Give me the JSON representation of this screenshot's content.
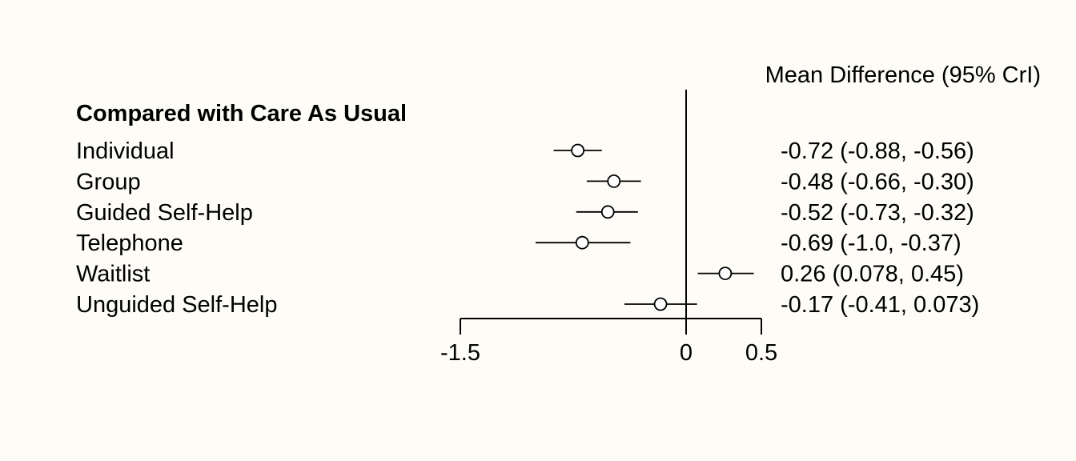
{
  "chart_data": {
    "type": "forest",
    "column_header": "Mean Difference (95% CrI)",
    "group_heading": "Compared with Care As Usual",
    "reference_value": 0,
    "xlim": [
      -1.5,
      0.5
    ],
    "x_ticks": [
      -1.5,
      0,
      0.5
    ],
    "x_tick_labels": [
      "-1.5",
      "0",
      "0.5"
    ],
    "rows": [
      {
        "label": "Individual",
        "estimate": -0.72,
        "lower": -0.88,
        "upper": -0.56,
        "ci_text": "-0.72 (-0.88, -0.56)"
      },
      {
        "label": "Group",
        "estimate": -0.48,
        "lower": -0.66,
        "upper": -0.3,
        "ci_text": "-0.48 (-0.66, -0.30)"
      },
      {
        "label": "Guided Self-Help",
        "estimate": -0.52,
        "lower": -0.73,
        "upper": -0.32,
        "ci_text": "-0.52 (-0.73, -0.32)"
      },
      {
        "label": "Telephone",
        "estimate": -0.69,
        "lower": -1.0,
        "upper": -0.37,
        "ci_text": "-0.69 (-1.0, -0.37)"
      },
      {
        "label": "Waitlist",
        "estimate": 0.26,
        "lower": 0.078,
        "upper": 0.45,
        "ci_text": "0.26 (0.078, 0.45)"
      },
      {
        "label": "Unguided Self-Help",
        "estimate": -0.17,
        "lower": -0.41,
        "upper": 0.073,
        "ci_text": "-0.17 (-0.41, 0.073)"
      }
    ]
  }
}
